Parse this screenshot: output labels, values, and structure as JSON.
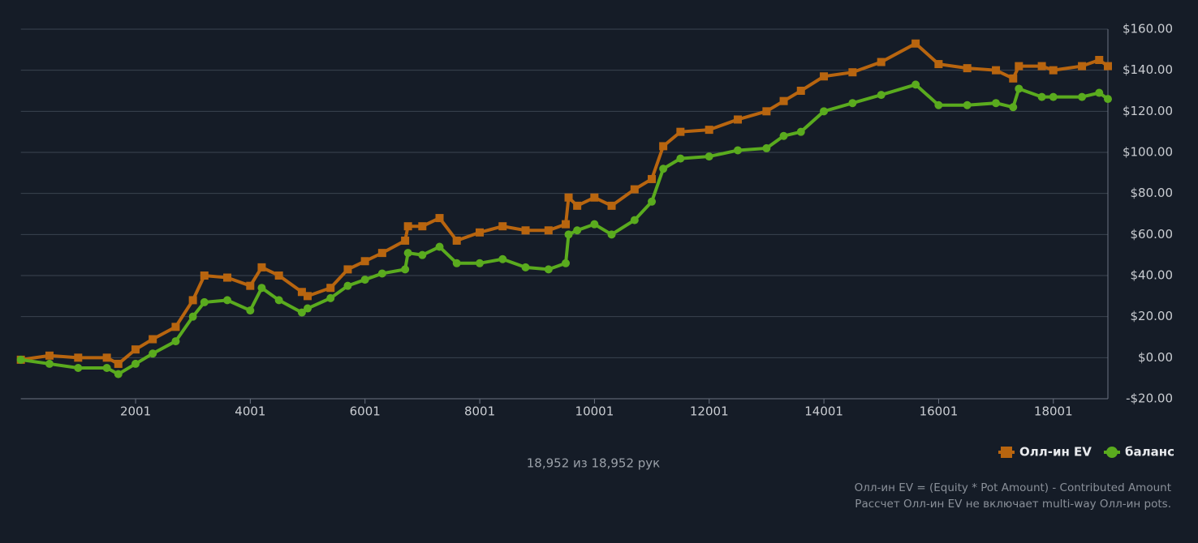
{
  "chart_data": {
    "type": "line",
    "x": [
      1,
      500,
      1000,
      1500,
      1700,
      2000,
      2300,
      2700,
      3000,
      3200,
      3600,
      4000,
      4200,
      4500,
      4900,
      5000,
      5400,
      5700,
      6000,
      6300,
      6700,
      6750,
      7000,
      7300,
      7600,
      8000,
      8400,
      8800,
      9200,
      9500,
      9550,
      9700,
      10000,
      10300,
      10700,
      11000,
      11200,
      11500,
      12000,
      12500,
      13000,
      13300,
      13600,
      14000,
      14500,
      15000,
      15600,
      16000,
      16500,
      17000,
      17300,
      17400,
      17800,
      18000,
      18500,
      18800,
      18952
    ],
    "series": [
      {
        "name": "Олл-ин EV",
        "color": "#b8650f",
        "marker": "square",
        "values": [
          -1,
          1,
          0,
          0,
          -3,
          4,
          9,
          15,
          28,
          40,
          39,
          35,
          44,
          40,
          32,
          30,
          34,
          43,
          47,
          51,
          57,
          64,
          64,
          68,
          57,
          61,
          64,
          62,
          62,
          65,
          78,
          74,
          78,
          74,
          82,
          87,
          103,
          110,
          111,
          116,
          120,
          125,
          130,
          137,
          139,
          144,
          153,
          143,
          141,
          140,
          136,
          142,
          142,
          140,
          142,
          145,
          142
        ]
      },
      {
        "name": "баланс",
        "color": "#5aab1e",
        "marker": "circle",
        "values": [
          -1,
          -3,
          -5,
          -5,
          -8,
          -3,
          2,
          8,
          20,
          27,
          28,
          23,
          34,
          28,
          22,
          24,
          29,
          35,
          38,
          41,
          43,
          51,
          50,
          54,
          46,
          46,
          48,
          44,
          43,
          46,
          60,
          62,
          65,
          60,
          67,
          76,
          92,
          97,
          98,
          101,
          102,
          108,
          110,
          120,
          124,
          128,
          133,
          123,
          123,
          124,
          122,
          131,
          127,
          127,
          127,
          129,
          126
        ]
      }
    ],
    "xlim": [
      1,
      18952
    ],
    "xticks": [
      2001,
      4001,
      6001,
      8001,
      10001,
      12001,
      14001,
      16001,
      18001
    ],
    "ylim": [
      -20,
      160
    ],
    "yticks": [
      {
        "value": -20,
        "label": "-$20.00"
      },
      {
        "value": 0,
        "label": "$0.00"
      },
      {
        "value": 20,
        "label": "$20.00"
      },
      {
        "value": 40,
        "label": "$40.00"
      },
      {
        "value": 60,
        "label": "$60.00"
      },
      {
        "value": 80,
        "label": "$80.00"
      },
      {
        "value": 100,
        "label": "$100.00"
      },
      {
        "value": 120,
        "label": "$120.00"
      },
      {
        "value": 140,
        "label": "$140.00"
      },
      {
        "value": 160,
        "label": "$160.00"
      }
    ],
    "grid": true,
    "caption": "18,952 из 18,952 рук",
    "notes": [
      "Олл-ин EV = (Equity * Pot Amount) - Contributed Amount",
      "Рассчет Олл-ин EV не включает multi-way Олл-ин pots."
    ]
  }
}
